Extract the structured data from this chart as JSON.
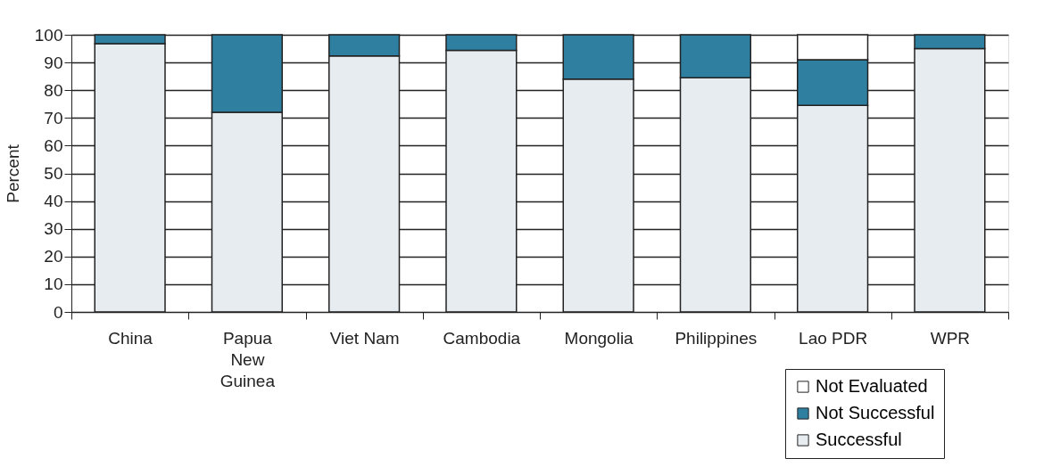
{
  "chart_data": {
    "type": "bar",
    "stacked": true,
    "ylabel": "Percent",
    "categories": [
      "China",
      "Papua New Guinea",
      "Viet Nam",
      "Cambodia",
      "Mongolia",
      "Philippines",
      "Lao PDR",
      "WPR"
    ],
    "series": [
      {
        "name": "Successful",
        "color": "#e7ecf0",
        "values": [
          96.8,
          72,
          92.4,
          94.4,
          84,
          84.5,
          74.5,
          95
        ]
      },
      {
        "name": "Not Successful",
        "color": "#2e7fa0",
        "values": [
          3.2,
          28,
          7.6,
          5.6,
          16,
          15.5,
          16.5,
          5
        ]
      },
      {
        "name": "Not Evaluated",
        "color": "#ffffff",
        "values": [
          null,
          null,
          null,
          null,
          null,
          null,
          9,
          null
        ]
      }
    ],
    "ylim": [
      0,
      100
    ],
    "yticks": [
      0,
      10,
      20,
      30,
      40,
      50,
      60,
      70,
      80,
      90,
      100
    ],
    "grid": "y",
    "legend": "bottom right"
  }
}
